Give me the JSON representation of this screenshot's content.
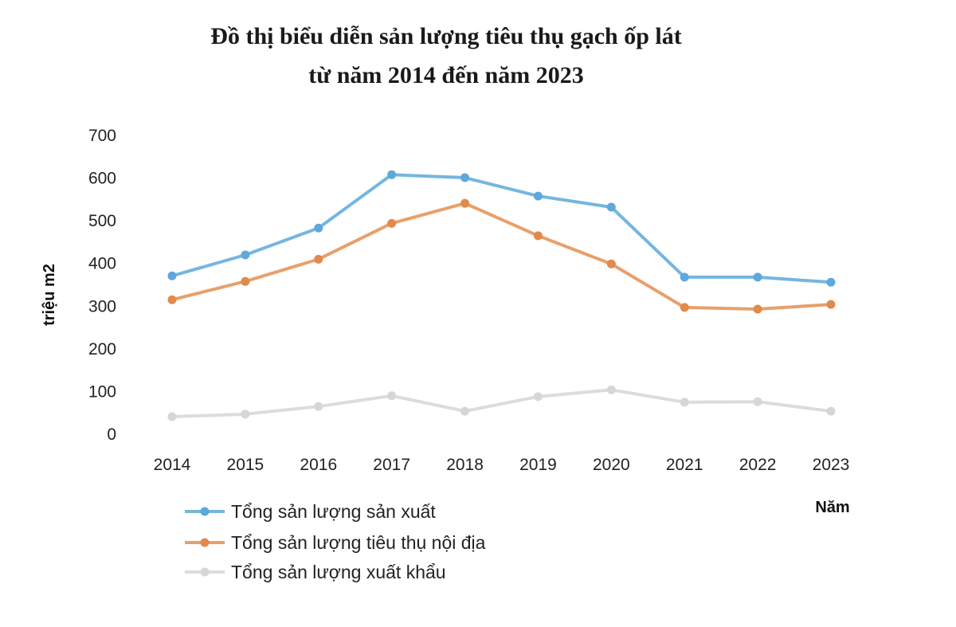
{
  "chart_data": {
    "type": "line",
    "title": [
      "Đồ thị biểu diễn sản lượng tiêu thụ gạch ốp lát",
      "từ năm 2014 đến năm 2023"
    ],
    "xlabel": "Năm",
    "ylabel": "triệu m2",
    "categories": [
      "2014",
      "2015",
      "2016",
      "2017",
      "2018",
      "2019",
      "2020",
      "2021",
      "2022",
      "2023"
    ],
    "ylim": [
      0,
      700
    ],
    "yticks": [
      "0",
      "100",
      "200",
      "300",
      "400",
      "500",
      "600",
      "700"
    ],
    "grid": false,
    "legend": "bottom-left",
    "series": [
      {
        "name": "Tổng sản lượng sản xuất",
        "color": "#74b6e0",
        "marker": "#5ea8dc",
        "values": [
          371,
          420,
          483,
          608,
          601,
          558,
          532,
          368,
          368,
          356
        ]
      },
      {
        "name": "Tổng sản lượng tiêu thụ nội địa",
        "color": "#e8a06a",
        "marker": "#e08a4c",
        "values": [
          315,
          358,
          410,
          494,
          541,
          465,
          399,
          297,
          293,
          304
        ]
      },
      {
        "name": "Tổng sản lượng xuất khẩu",
        "color": "#dcdcdc",
        "marker": "#d6d6d6",
        "values": [
          41,
          47,
          65,
          90,
          54,
          88,
          104,
          75,
          76,
          54
        ]
      }
    ]
  }
}
